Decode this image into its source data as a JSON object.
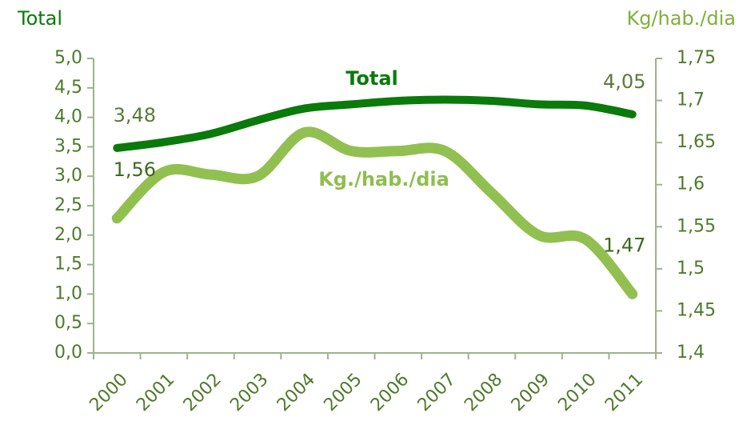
{
  "chart_data": {
    "type": "line",
    "y_label": "Total",
    "y2_label": "Kg/hab./dia",
    "categories": [
      "2000",
      "2001",
      "2002",
      "2003",
      "2004",
      "2005",
      "2006",
      "2007",
      "2008",
      "2009",
      "2010",
      "2011"
    ],
    "series": [
      {
        "name": "Total",
        "color": "#0a7a0a",
        "axis": "y",
        "values": [
          3.48,
          3.58,
          3.72,
          3.95,
          4.15,
          4.22,
          4.28,
          4.3,
          4.28,
          4.22,
          4.2,
          4.05
        ],
        "value_labels": [
          "3,48",
          null,
          null,
          null,
          null,
          null,
          null,
          null,
          null,
          null,
          null,
          "4,05"
        ]
      },
      {
        "name": "Kg./hab./dia",
        "color": "#92c050",
        "axis": "y2",
        "values": [
          1.56,
          1.615,
          1.612,
          1.61,
          1.662,
          1.64,
          1.64,
          1.64,
          1.59,
          1.54,
          1.535,
          1.47
        ],
        "value_labels": [
          "1,56",
          null,
          null,
          null,
          null,
          null,
          null,
          null,
          null,
          null,
          null,
          "1,47"
        ]
      }
    ],
    "ylim": [
      0,
      5
    ],
    "yticks": [
      {
        "value": 0,
        "label": "0,0"
      },
      {
        "value": 0.5,
        "label": "0,5"
      },
      {
        "value": 1,
        "label": "1,0"
      },
      {
        "value": 1.5,
        "label": "1,5"
      },
      {
        "value": 2,
        "label": "2,0"
      },
      {
        "value": 2.5,
        "label": "2,5"
      },
      {
        "value": 3,
        "label": "3,0"
      },
      {
        "value": 3.5,
        "label": "3,5"
      },
      {
        "value": 4,
        "label": "4,0"
      },
      {
        "value": 4.5,
        "label": "4,5"
      },
      {
        "value": 5,
        "label": "5,0"
      }
    ],
    "y2lim": [
      1.4,
      1.75
    ],
    "y2ticks": [
      {
        "value": 1.4,
        "label": "1,4"
      },
      {
        "value": 1.45,
        "label": "1,45"
      },
      {
        "value": 1.5,
        "label": "1,5"
      },
      {
        "value": 1.55,
        "label": "1,55"
      },
      {
        "value": 1.6,
        "label": "1,6"
      },
      {
        "value": 1.65,
        "label": "1,65"
      },
      {
        "value": 1.7,
        "label": "1,7"
      },
      {
        "value": 1.75,
        "label": "1,75"
      }
    ],
    "grid": false
  }
}
